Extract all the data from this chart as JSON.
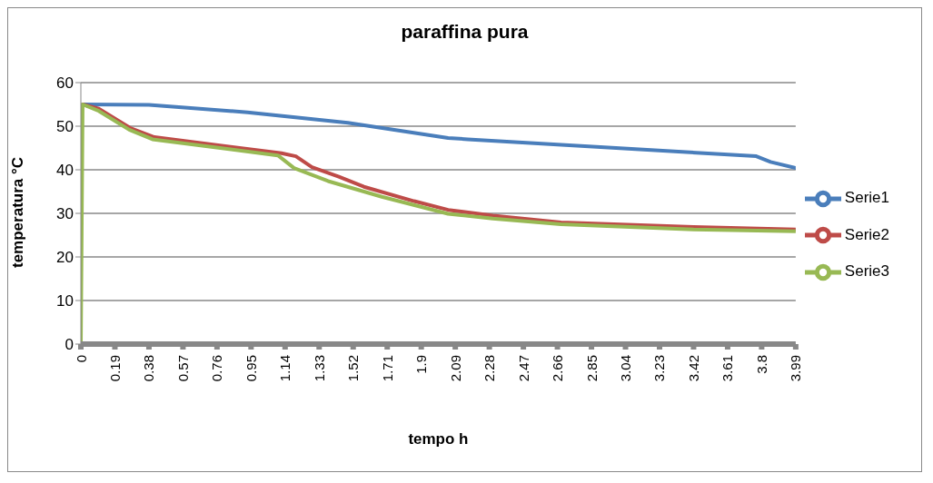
{
  "chart_data": {
    "type": "line",
    "title": "paraffina pura",
    "xlabel": "tempo h",
    "ylabel": "temperatura °C",
    "xlim": [
      0,
      3.99
    ],
    "xticks": [
      0,
      0.19,
      0.38,
      0.57,
      0.76,
      0.95,
      1.14,
      1.33,
      1.52,
      1.71,
      1.9,
      2.09,
      2.28,
      2.47,
      2.66,
      2.85,
      3.04,
      3.23,
      3.42,
      3.61,
      3.8,
      3.99
    ],
    "ylim": [
      0,
      60
    ],
    "yticks": [
      0,
      10,
      20,
      30,
      40,
      50,
      60
    ],
    "grid": "y",
    "legend": "right",
    "marker": "none",
    "line_style": "solid",
    "series": [
      {
        "name": "Serie1",
        "color": "#4a7ebb",
        "x": [
          0.01,
          0.38,
          0.93,
          1.49,
          2.05,
          2.16,
          3.77,
          3.85,
          3.99
        ],
        "values": [
          55,
          54.9,
          53.2,
          50.8,
          47.3,
          47,
          43.1,
          41.8,
          40.4
        ]
      },
      {
        "name": "Serie2",
        "color": "#be4b48",
        "x": [
          0.01,
          0.1,
          0.28,
          0.41,
          1.12,
          1.2,
          1.29,
          1.44,
          1.58,
          1.86,
          2.05,
          2.3,
          2.68,
          3.42,
          3.99
        ],
        "values": [
          55,
          54,
          49.5,
          47.5,
          43.8,
          43.1,
          40.6,
          38.4,
          36.1,
          32.8,
          30.8,
          29.5,
          27.9,
          26.9,
          26.3
        ]
      },
      {
        "name": "Serie3",
        "color": "#98b954",
        "x": [
          0,
          0.01,
          0.1,
          0.27,
          0.4,
          1.1,
          1.19,
          1.38,
          1.68,
          2.05,
          2.3,
          2.68,
          3.42,
          3.99
        ],
        "values": [
          0,
          55,
          53.5,
          49.2,
          47,
          43.3,
          40.4,
          37.4,
          33.8,
          29.9,
          28.8,
          27.5,
          26.3,
          25.9
        ]
      }
    ]
  }
}
